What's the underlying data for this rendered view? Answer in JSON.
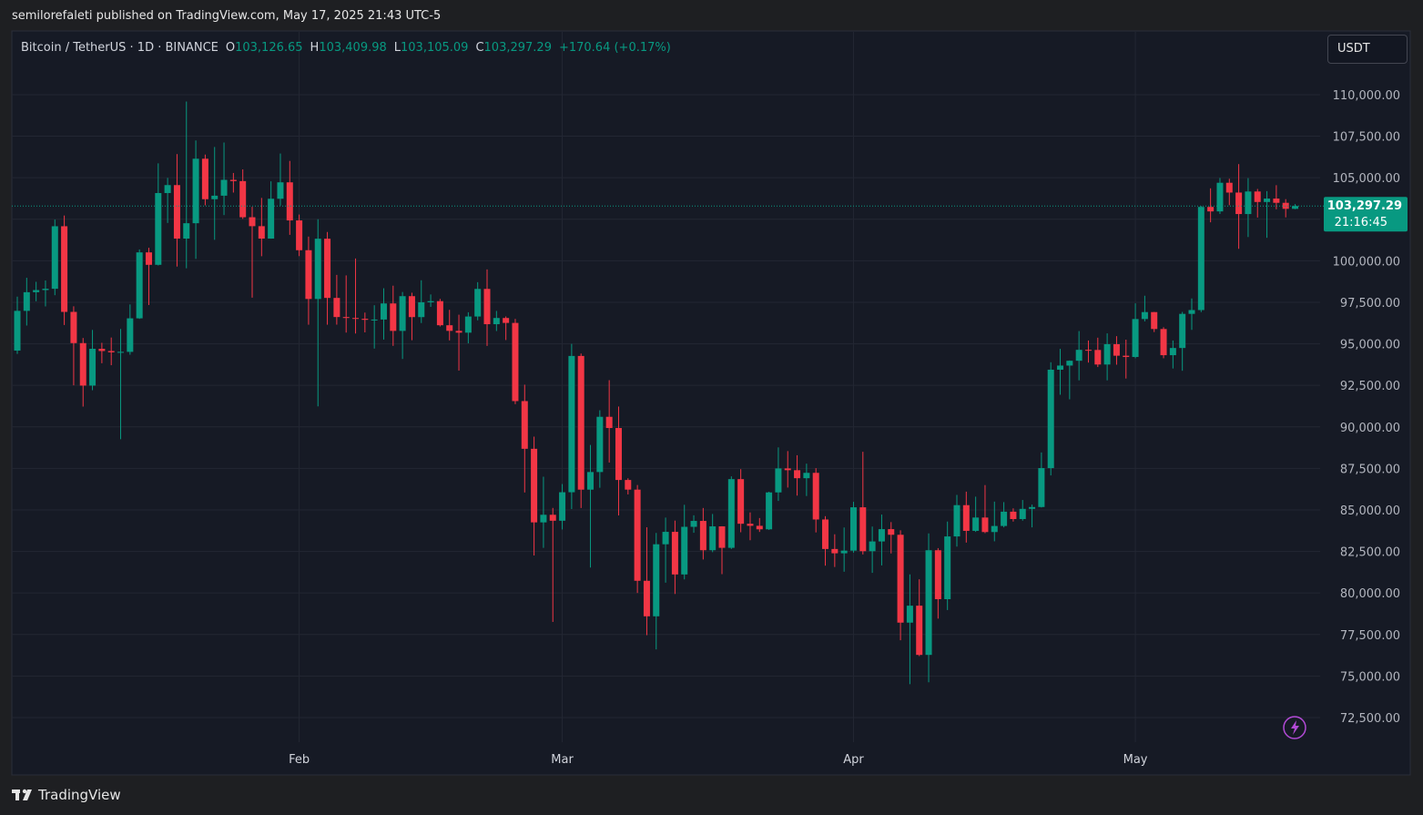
{
  "header": {
    "publisher": "semilorefaleti published on TradingView.com, May 17, 2025 21:43 UTC-5",
    "brand": "TradingView",
    "currency_button": "USDT"
  },
  "chart_data": {
    "type": "candlestick",
    "legend": {
      "symbol": "Bitcoin / TetherUS · 1D · BINANCE",
      "fields": [
        {
          "key": "O",
          "value": "103,126.65"
        },
        {
          "key": "H",
          "value": "103,409.98"
        },
        {
          "key": "L",
          "value": "103,105.09"
        },
        {
          "key": "C",
          "value": "103,297.29"
        }
      ],
      "change": "+170.64 (+0.17%)"
    },
    "last_price": {
      "value": 103297.29,
      "label": "103,297.29",
      "countdown": "21:16:45"
    },
    "up_color": "#089981",
    "down_color": "#f23645",
    "ylim": [
      69100,
      113780
    ],
    "yticks": [
      {
        "value": 72500,
        "label": "72,500.00"
      },
      {
        "value": 75000,
        "label": "75,000.00"
      },
      {
        "value": 77500,
        "label": "77,500.00"
      },
      {
        "value": 80000,
        "label": "80,000.00"
      },
      {
        "value": 82500,
        "label": "82,500.00"
      },
      {
        "value": 85000,
        "label": "85,000.00"
      },
      {
        "value": 87500,
        "label": "87,500.00"
      },
      {
        "value": 90000,
        "label": "90,000.00"
      },
      {
        "value": 92500,
        "label": "92,500.00"
      },
      {
        "value": 95000,
        "label": "95,000.00"
      },
      {
        "value": 97500,
        "label": "97,500.00"
      },
      {
        "value": 100000,
        "label": "100,000.00"
      },
      {
        "value": 102500,
        "label": "102,500.00"
      },
      {
        "value": 105000,
        "label": "105,000.00"
      },
      {
        "value": 107500,
        "label": "107,500.00"
      },
      {
        "value": 110000,
        "label": "110,000.00"
      }
    ],
    "grid": true,
    "categories": [
      null,
      null,
      null,
      null,
      null,
      null,
      null,
      null,
      null,
      null,
      null,
      null,
      null,
      null,
      null,
      null,
      null,
      null,
      null,
      null,
      null,
      null,
      null,
      null,
      null,
      null,
      null,
      null,
      null,
      null,
      "Feb",
      null,
      null,
      null,
      null,
      null,
      null,
      null,
      null,
      null,
      null,
      null,
      null,
      null,
      null,
      null,
      null,
      null,
      null,
      null,
      null,
      null,
      null,
      null,
      null,
      null,
      null,
      null,
      "Mar",
      null,
      null,
      null,
      null,
      null,
      null,
      null,
      null,
      null,
      null,
      null,
      null,
      null,
      null,
      null,
      null,
      null,
      null,
      null,
      null,
      null,
      null,
      null,
      null,
      null,
      null,
      null,
      null,
      null,
      null,
      "Apr",
      null,
      null,
      null,
      null,
      null,
      null,
      null,
      null,
      null,
      null,
      null,
      null,
      null,
      null,
      null,
      null,
      null,
      null,
      null,
      null,
      null,
      null,
      null,
      null,
      null,
      null,
      null,
      null,
      null,
      "May",
      null,
      null,
      null,
      null,
      null,
      null,
      null,
      null,
      null,
      null,
      null,
      null,
      null,
      null,
      null,
      null,
      null
    ],
    "open": [
      94591,
      96984,
      98107,
      98236,
      98314,
      102078,
      96922,
      95043,
      92484,
      94701,
      94566,
      94488,
      94516,
      96534,
      100504,
      99756,
      104077,
      104556,
      101335,
      102260,
      106143,
      103706,
      103918,
      104871,
      104796,
      102620,
      102082,
      101335,
      103733,
      104722,
      102429,
      100635,
      97700,
      101328,
      97763,
      96612,
      96554,
      96506,
      96444,
      96462,
      97430,
      95778,
      97869,
      96608,
      97500,
      97569,
      96118,
      95780,
      95671,
      96644,
      98305,
      96181,
      96554,
      96258,
      91552,
      88680,
      84250,
      84708,
      84349,
      86064,
      94270,
      86220,
      87281,
      90606,
      89931,
      86802,
      86222,
      80734,
      78595,
      82932,
      83680,
      81115,
      83983,
      84338,
      82574,
      84010,
      82718,
      86854,
      84167,
      84043,
      83832,
      86054,
      87498,
      87392,
      86909,
      87232,
      84424,
      82648,
      82389,
      82550,
      85158,
      82516,
      83102,
      83843,
      83504,
      78214,
      79235,
      76271,
      82573,
      79626,
      83404,
      85287,
      83739,
      84542,
      83668,
      84033,
      84895,
      84450,
      85063,
      85174,
      87518,
      93442,
      93691,
      93980,
      94638,
      94630,
      93754,
      94978,
      94284,
      94207,
      96492,
      96910,
      95891,
      94315,
      94748,
      96803,
      97032,
      103241,
      102971,
      104696,
      104106,
      102812,
      104170,
      103539,
      103744,
      103489,
      103126.65
    ],
    "close": [
      96984,
      98107,
      98236,
      98314,
      102078,
      96922,
      95043,
      92484,
      94701,
      94566,
      94488,
      94516,
      96534,
      100504,
      99756,
      104077,
      104556,
      101335,
      102260,
      106143,
      103706,
      103918,
      104871,
      104796,
      102620,
      102082,
      101335,
      103733,
      104722,
      102429,
      100635,
      97700,
      101328,
      97763,
      96612,
      96554,
      96506,
      96444,
      96462,
      97430,
      95778,
      97869,
      96608,
      97500,
      97569,
      96118,
      95780,
      95671,
      96644,
      98305,
      96181,
      96554,
      96258,
      91552,
      88680,
      84250,
      84708,
      84349,
      86064,
      94270,
      86220,
      87281,
      90606,
      89931,
      86802,
      86222,
      80734,
      78595,
      82932,
      83680,
      81115,
      83983,
      84338,
      82574,
      84010,
      82718,
      86854,
      84167,
      84043,
      83832,
      86054,
      87498,
      87392,
      86909,
      87232,
      84424,
      82648,
      82389,
      82550,
      85158,
      82516,
      83102,
      83843,
      83504,
      78214,
      79235,
      76271,
      82573,
      79626,
      83404,
      85287,
      83739,
      84542,
      83668,
      84033,
      84895,
      84450,
      85063,
      85174,
      87518,
      93442,
      93691,
      93980,
      94638,
      94630,
      93754,
      94978,
      94284,
      94207,
      96492,
      96910,
      95891,
      94315,
      94748,
      96803,
      97032,
      103241,
      102971,
      104696,
      104106,
      102812,
      104170,
      103539,
      103744,
      103489,
      103126.65,
      103297.29
    ],
    "high": [
      97839,
      98976,
      98734,
      98813,
      102482,
      102724,
      97258,
      95350,
      95836,
      95061,
      95378,
      95893,
      97371,
      100681,
      100781,
      105865,
      104988,
      106422,
      109588,
      107240,
      106394,
      106850,
      107120,
      105286,
      105500,
      103250,
      103784,
      104782,
      106457,
      106012,
      102783,
      101456,
      102500,
      101732,
      99149,
      99120,
      100137,
      96880,
      97323,
      98345,
      98500,
      98119,
      98076,
      98826,
      97972,
      97704,
      97046,
      96753,
      96899,
      98711,
      99475,
      96980,
      96650,
      96500,
      92540,
      89414,
      87000,
      85120,
      86558,
      95000,
      94416,
      88911,
      91000,
      92810,
      91224,
      86906,
      86500,
      83955,
      83617,
      84539,
      84358,
      85309,
      84676,
      85117,
      84756,
      84021,
      87021,
      87453,
      84850,
      84513,
      86094,
      88765,
      88542,
      88292,
      87786,
      87515,
      84624,
      83534,
      83943,
      85487,
      88500,
      83998,
      84720,
      84266,
      83773,
      81119,
      80823,
      83588,
      82700,
      84300,
      85905,
      86100,
      85799,
      86496,
      85500,
      85470,
      85095,
      85597,
      85320,
      88460,
      93888,
      94696,
      94000,
      95768,
      95199,
      95369,
      95630,
      95461,
      95250,
      97437,
      97895,
      96920,
      96000,
      95199,
      96920,
      97732,
      103300,
      104361,
      104984,
      104937,
      105819,
      104976,
      104323,
      104193,
      104550,
      103709,
      103409.98
    ],
    "low": [
      94392,
      96100,
      97562,
      97252,
      97926,
      96132,
      92500,
      91220,
      92206,
      93831,
      93712,
      89256,
      94346,
      96500,
      97336,
      99716,
      102277,
      99651,
      99550,
      100119,
      103339,
      101262,
      102750,
      104106,
      102520,
      97777,
      100273,
      101328,
      103320,
      101560,
      100279,
      96150,
      91231,
      96150,
      96155,
      95676,
      95620,
      95688,
      94713,
      95256,
      94876,
      94088,
      95217,
      96252,
      97223,
      96046,
      95205,
      93388,
      95029,
      96415,
      94871,
      95770,
      95227,
      91370,
      86050,
      82256,
      82716,
      78258,
      83824,
      85050,
      85117,
      81529,
      86334,
      87852,
      84667,
      85932,
      80000,
      77459,
      76606,
      80620,
      79939,
      80818,
      83625,
      82017,
      82457,
      81134,
      82648,
      83655,
      83175,
      83674,
      83794,
      85541,
      86346,
      85861,
      85837,
      83645,
      81644,
      81565,
      81279,
      82429,
      82320,
      81211,
      81659,
      82379,
      77153,
      74508,
      76198,
      74620,
      78456,
      78972,
      82792,
      83034,
      83678,
      83600,
      83111,
      83949,
      84298,
      84353,
      83949,
      85144,
      87076,
      91935,
      91660,
      92800,
      93870,
      93602,
      92800,
      93742,
      92910,
      94130,
      96350,
      95709,
      94130,
      93514,
      93377,
      95840,
      96910,
      102315,
      102818,
      103346,
      100719,
      101429,
      102602,
      101383,
      103100,
      102612,
      103105.09
    ]
  }
}
